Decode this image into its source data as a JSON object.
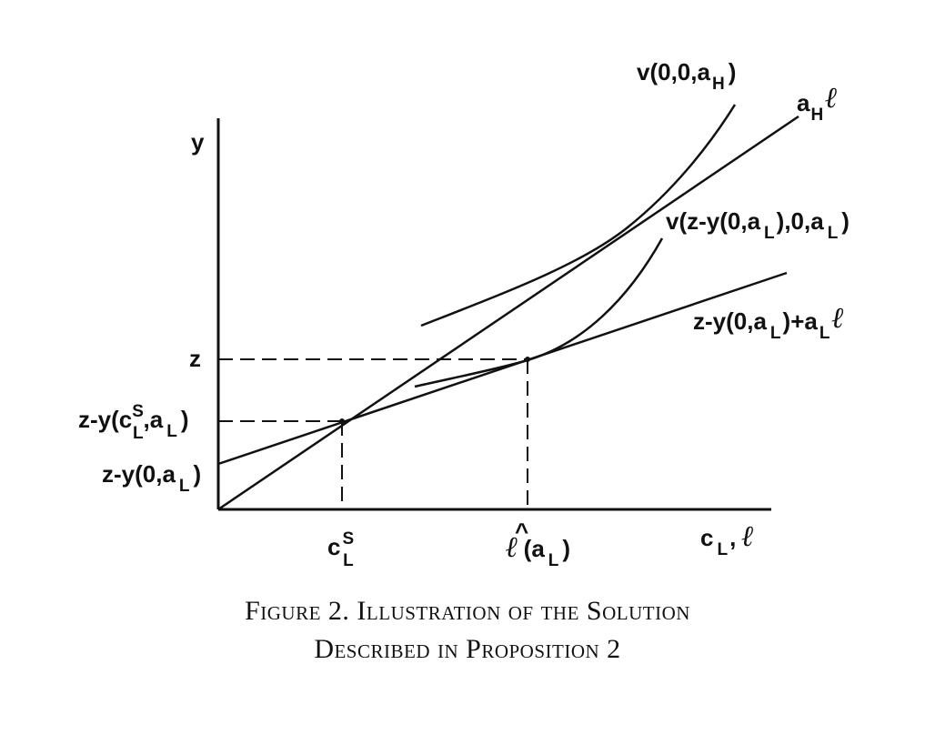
{
  "labels": {
    "y_axis": "y",
    "x_axis_main": "c",
    "x_axis_sub": "L",
    "x_axis_tail": ",",
    "x_axis_ell": "ℓ",
    "z": "z",
    "zy_cs_pre": "z-y(c",
    "zy_cs_sup": "S",
    "zy_cs_sub": "L",
    "zy_cs_mid": ",a",
    "zy_cs_sub2": "L",
    "zy_cs_post": ")",
    "zy0_pre": "z-y(0,a",
    "zy0_sub": "L",
    "zy0_post": ")",
    "cs_main": "c",
    "cs_sup": "S",
    "cs_sub": "L",
    "lhat_ell": "ℓ",
    "lhat_hat": "^",
    "lhat_pre": "(a",
    "lhat_sub": "L",
    "lhat_post": ")",
    "vH_pre": "v(0,0,a",
    "vH_sub": "H",
    "vH_post": ")",
    "aH_a": "a",
    "aH_sub": "H",
    "aH_ell": "ℓ",
    "vz_pre": "v(z-y(0,a",
    "vz_sub1": "L",
    "vz_mid": "),0,a",
    "vz_sub2": "L",
    "vz_post": ")",
    "line_pre": "z-y(0,a",
    "line_sub1": "L",
    "line_mid": ")+a",
    "line_sub2": "L",
    "line_ell": "ℓ"
  },
  "caption": {
    "line1": "Figure 2. Illustration of the Solution",
    "line2": "Described in Proposition 2"
  }
}
